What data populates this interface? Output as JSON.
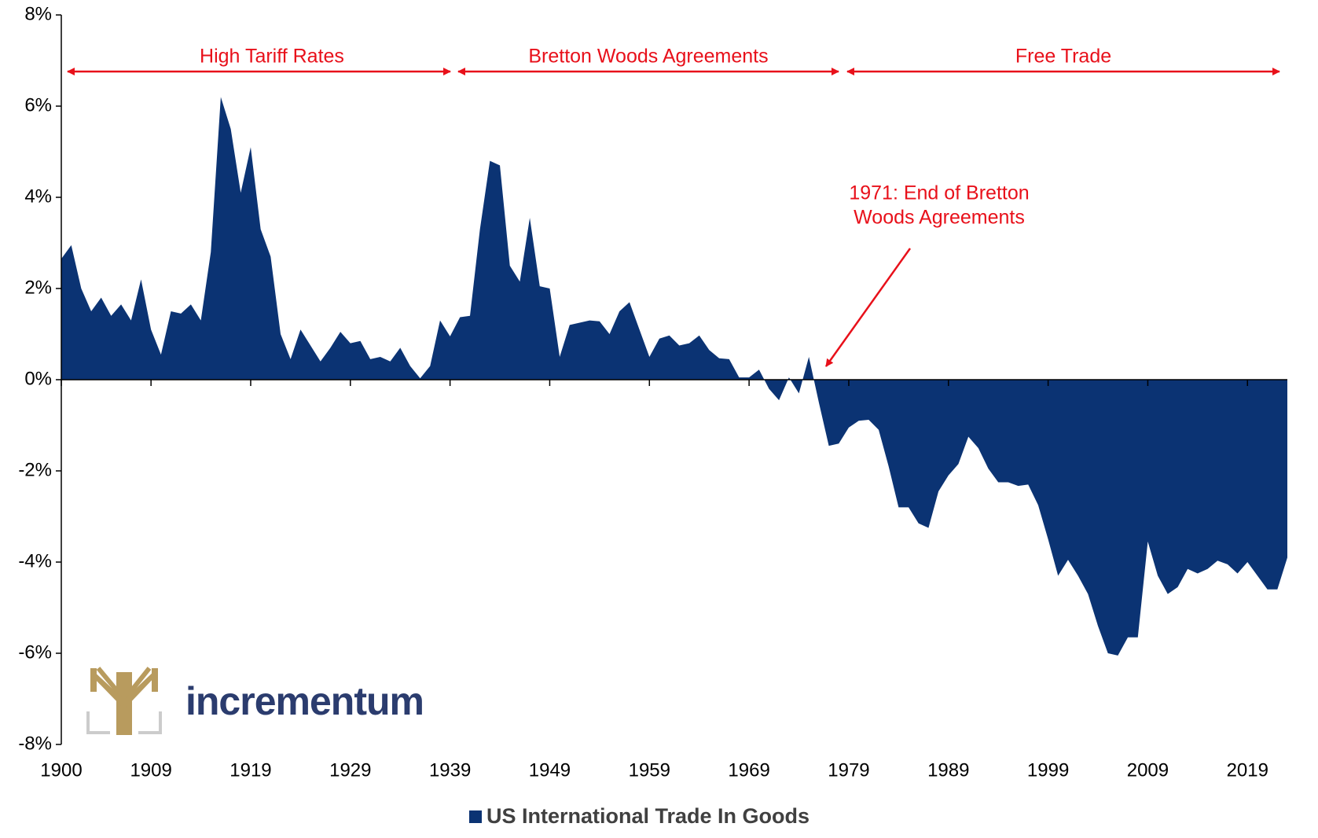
{
  "chart_data": {
    "type": "area",
    "x": [
      1900,
      1901,
      1902,
      1903,
      1904,
      1905,
      1906,
      1907,
      1908,
      1909,
      1910,
      1911,
      1912,
      1913,
      1914,
      1915,
      1916,
      1917,
      1918,
      1919,
      1920,
      1921,
      1922,
      1923,
      1924,
      1925,
      1926,
      1927,
      1928,
      1929,
      1930,
      1931,
      1932,
      1933,
      1934,
      1935,
      1936,
      1937,
      1938,
      1939,
      1940,
      1941,
      1942,
      1943,
      1944,
      1945,
      1946,
      1947,
      1948,
      1949,
      1950,
      1951,
      1952,
      1953,
      1954,
      1955,
      1956,
      1957,
      1958,
      1959,
      1960,
      1961,
      1962,
      1963,
      1964,
      1965,
      1966,
      1967,
      1968,
      1969,
      1970,
      1971,
      1972,
      1973,
      1974,
      1975,
      1976,
      1977,
      1978,
      1979,
      1980,
      1981,
      1982,
      1983,
      1984,
      1985,
      1986,
      1987,
      1988,
      1989,
      1990,
      1991,
      1992,
      1993,
      1994,
      1995,
      1996,
      1997,
      1998,
      1999,
      2000,
      2001,
      2002,
      2003,
      2004,
      2005,
      2006,
      2007,
      2008,
      2009,
      2010,
      2011,
      2012,
      2013,
      2014,
      2015,
      2016,
      2017,
      2018,
      2019,
      2020,
      2021,
      2022,
      2023
    ],
    "series": [
      {
        "name": "US International Trade In Goods",
        "color": "#0b3373",
        "values": [
          2.65,
          2.95,
          2.0,
          1.5,
          1.8,
          1.4,
          1.65,
          1.3,
          2.2,
          1.1,
          0.55,
          1.5,
          1.45,
          1.65,
          1.3,
          2.8,
          6.2,
          5.5,
          4.1,
          5.1,
          3.3,
          2.7,
          1.0,
          0.45,
          1.1,
          0.75,
          0.4,
          0.7,
          1.05,
          0.8,
          0.85,
          0.45,
          0.5,
          0.4,
          0.7,
          0.3,
          0.03,
          0.3,
          1.3,
          0.95,
          1.37,
          1.4,
          3.3,
          4.8,
          4.7,
          2.5,
          2.15,
          3.55,
          2.05,
          2.0,
          0.5,
          1.2,
          1.25,
          1.3,
          1.28,
          1.0,
          1.5,
          1.7,
          1.1,
          0.5,
          0.9,
          0.97,
          0.75,
          0.8,
          0.97,
          0.65,
          0.47,
          0.45,
          0.05,
          0.05,
          0.22,
          -0.2,
          -0.45,
          0.05,
          -0.3,
          0.5,
          -0.5,
          -1.45,
          -1.4,
          -1.05,
          -0.9,
          -0.88,
          -1.1,
          -1.9,
          -2.8,
          -2.8,
          -3.15,
          -3.25,
          -2.45,
          -2.1,
          -1.85,
          -1.25,
          -1.5,
          -1.95,
          -2.25,
          -2.25,
          -2.33,
          -2.3,
          -2.75,
          -3.5,
          -4.3,
          -3.95,
          -4.3,
          -4.7,
          -5.4,
          -6.0,
          -6.05,
          -5.65,
          -5.65,
          -3.55,
          -4.3,
          -4.7,
          -4.55,
          -4.15,
          -4.25,
          -4.15,
          -3.97,
          -4.05,
          -4.25,
          -4.0,
          -4.3,
          -4.6,
          -4.6,
          -3.9
        ]
      }
    ],
    "xlim": [
      1900,
      2023
    ],
    "xticks": [
      1900,
      1909,
      1919,
      1929,
      1939,
      1949,
      1959,
      1969,
      1979,
      1989,
      1999,
      2009,
      2019
    ],
    "ylim": [
      -8,
      8
    ],
    "yticks": [
      {
        "value": -8,
        "label": "-8%"
      },
      {
        "value": -6,
        "label": "-6%"
      },
      {
        "value": -4,
        "label": "-4%"
      },
      {
        "value": -2,
        "label": "-2%"
      },
      {
        "value": 0,
        "label": "0%"
      },
      {
        "value": 2,
        "label": "2%"
      },
      {
        "value": 4,
        "label": "4%"
      },
      {
        "value": 6,
        "label": "6%"
      },
      {
        "value": 8,
        "label": "8%"
      }
    ],
    "periods": [
      "High Tariff Rates",
      "Bretton Woods Agreements",
      "Free Trade"
    ],
    "annotation": [
      "1971: End of Bretton",
      "Woods Agreements"
    ],
    "logo": "incrementum"
  }
}
